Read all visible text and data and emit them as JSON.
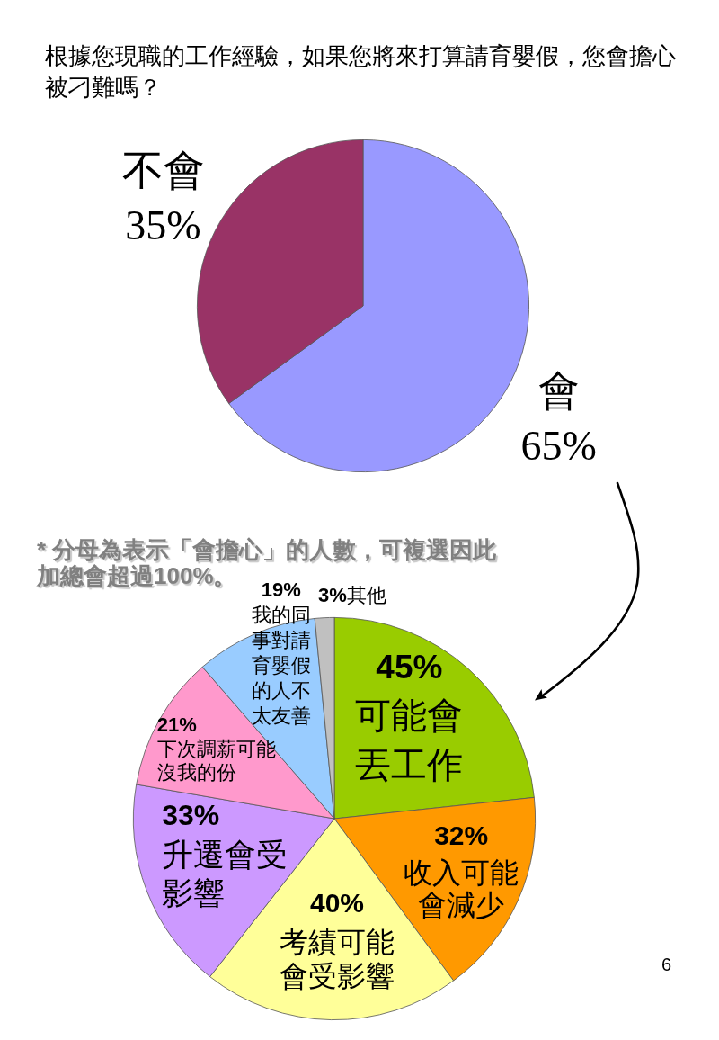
{
  "chart_data": [
    {
      "type": "pie",
      "title": "根據您現職的工作經驗，如果您將來打算請育嬰假，您會擔心被刁難嗎？",
      "categories": [
        "會",
        "不會"
      ],
      "values": [
        65,
        35
      ],
      "colors": [
        "#9999ff",
        "#993366"
      ],
      "value_labels": [
        "65%",
        "35%"
      ]
    },
    {
      "type": "pie",
      "categories": [
        "可能會丟工作",
        "收入可能會減少",
        "考績可能會受影響",
        "升遷會受影響",
        "下次調薪可能沒我的份",
        "我的同事對請育嬰假的人不太友善",
        "其他"
      ],
      "values": [
        45,
        32,
        40,
        33,
        21,
        19,
        3
      ],
      "colors": [
        "#99cc00",
        "#ff9900",
        "#ffff99",
        "#cc99ff",
        "#ff99cc",
        "#99ccff",
        "#c0c0c0"
      ],
      "value_labels": [
        "45%",
        "32%",
        "40%",
        "33%",
        "21%",
        "19%",
        "3%"
      ],
      "annotations": [
        "* 分母為表示「會擔心」的人數，可複選因此加總會超過100%。",
        "6"
      ]
    }
  ]
}
